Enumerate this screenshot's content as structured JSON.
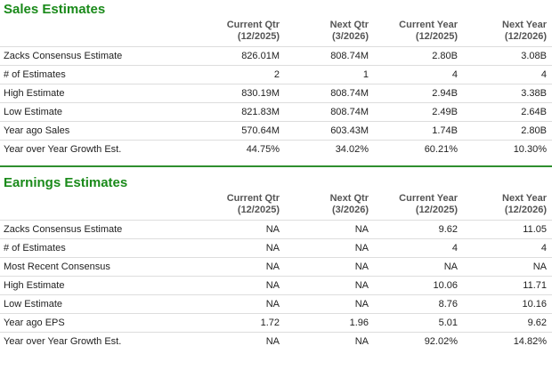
{
  "sales": {
    "title": "Sales Estimates",
    "columns": [
      {
        "line1": "Current Qtr",
        "line2": "(12/2025)"
      },
      {
        "line1": "Next Qtr",
        "line2": "(3/2026)"
      },
      {
        "line1": "Current Year",
        "line2": "(12/2025)"
      },
      {
        "line1": "Next Year",
        "line2": "(12/2026)"
      }
    ],
    "rows": [
      {
        "label": "Zacks Consensus Estimate",
        "values": [
          "826.01M",
          "808.74M",
          "2.80B",
          "3.08B"
        ]
      },
      {
        "label": "# of Estimates",
        "values": [
          "2",
          "1",
          "4",
          "4"
        ]
      },
      {
        "label": "High Estimate",
        "values": [
          "830.19M",
          "808.74M",
          "2.94B",
          "3.38B"
        ]
      },
      {
        "label": "Low Estimate",
        "values": [
          "821.83M",
          "808.74M",
          "2.49B",
          "2.64B"
        ]
      },
      {
        "label": "Year ago Sales",
        "values": [
          "570.64M",
          "603.43M",
          "1.74B",
          "2.80B"
        ]
      },
      {
        "label": "Year over Year Growth Est.",
        "values": [
          "44.75%",
          "34.02%",
          "60.21%",
          "10.30%"
        ]
      }
    ]
  },
  "earnings": {
    "title": "Earnings Estimates",
    "columns": [
      {
        "line1": "Current Qtr",
        "line2": "(12/2025)"
      },
      {
        "line1": "Next Qtr",
        "line2": "(3/2026)"
      },
      {
        "line1": "Current Year",
        "line2": "(12/2025)"
      },
      {
        "line1": "Next Year",
        "line2": "(12/2026)"
      }
    ],
    "rows": [
      {
        "label": "Zacks Consensus Estimate",
        "values": [
          "NA",
          "NA",
          "9.62",
          "11.05"
        ]
      },
      {
        "label": "# of Estimates",
        "values": [
          "NA",
          "NA",
          "4",
          "4"
        ]
      },
      {
        "label": "Most Recent Consensus",
        "values": [
          "NA",
          "NA",
          "NA",
          "NA"
        ]
      },
      {
        "label": "High Estimate",
        "values": [
          "NA",
          "NA",
          "10.06",
          "11.71"
        ]
      },
      {
        "label": "Low Estimate",
        "values": [
          "NA",
          "NA",
          "8.76",
          "10.16"
        ]
      },
      {
        "label": "Year ago EPS",
        "values": [
          "1.72",
          "1.96",
          "5.01",
          "9.62"
        ]
      },
      {
        "label": "Year over Year Growth Est.",
        "values": [
          "NA",
          "NA",
          "92.02%",
          "14.82%"
        ]
      }
    ]
  },
  "colors": {
    "accent": "#1a8a1a",
    "divider": "#2f8f2f",
    "rule": "#dddddd"
  }
}
